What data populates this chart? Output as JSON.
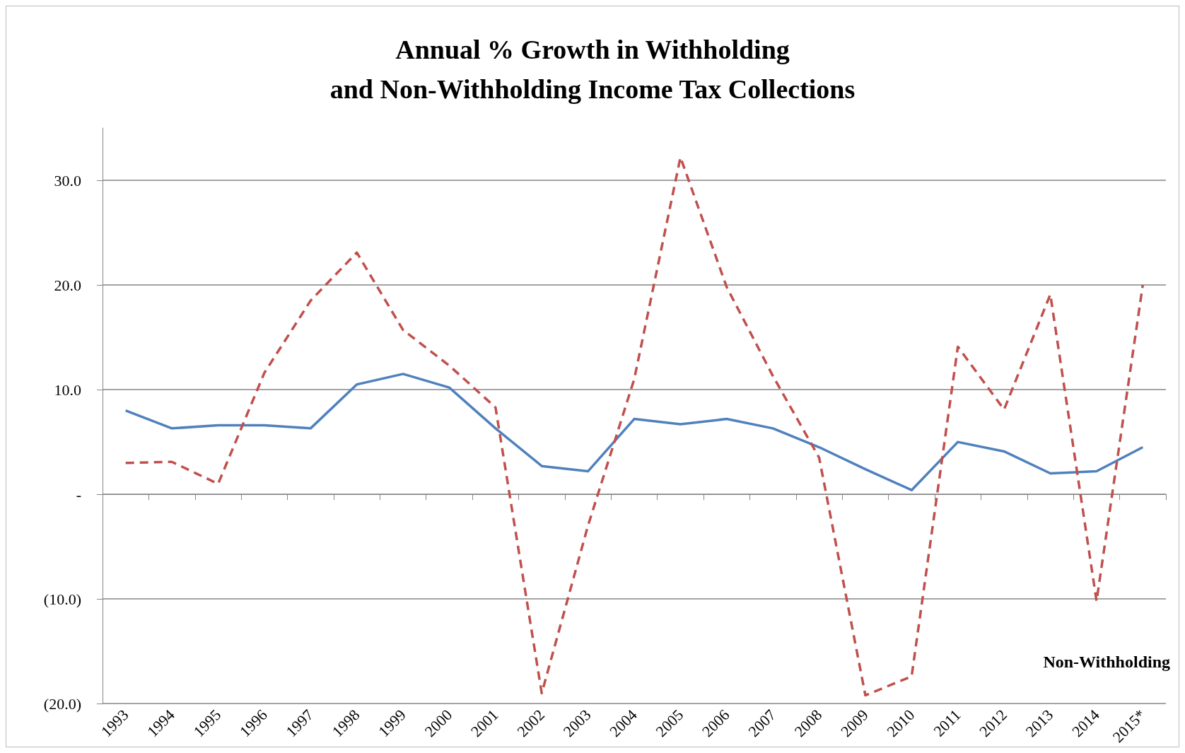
{
  "chart_data": {
    "type": "line",
    "title": "Annual % Growth in Withholding\nand Non-Withholding Income Tax Collections",
    "categories": [
      "1993",
      "1994",
      "1995",
      "1996",
      "1997",
      "1998",
      "1999",
      "2000",
      "2001",
      "2002",
      "2003",
      "2004",
      "2005",
      "2006",
      "2007",
      "2008",
      "2009",
      "2010",
      "2011",
      "2012",
      "2013",
      "2014",
      "2015*"
    ],
    "series": [
      {
        "color": "#4f81bd",
        "line_style": "solid",
        "values": [
          8.0,
          6.3,
          6.6,
          6.6,
          6.3,
          10.5,
          11.5,
          10.2,
          6.3,
          2.7,
          2.2,
          7.2,
          6.7,
          7.2,
          6.3,
          4.5,
          2.4,
          0.4,
          5.0,
          4.1,
          2.0,
          2.2,
          4.5
        ]
      },
      {
        "name": "Non-Withholding",
        "color": "#c0504d",
        "line_style": "dashed",
        "values": [
          3.0,
          3.1,
          1.0,
          11.6,
          18.5,
          23.1,
          15.7,
          12.3,
          8.3,
          -19.0,
          -3.0,
          11.0,
          32.2,
          19.8,
          11.3,
          3.5,
          -19.2,
          -17.4,
          14.1,
          8.1,
          19.1,
          -10.2,
          20.0
        ]
      }
    ],
    "ylim": [
      -20,
      35
    ],
    "yticks": [
      {
        "value": -20,
        "label": "(20.0)"
      },
      {
        "value": -10,
        "label": "(10.0)"
      },
      {
        "value": 0,
        "label": "-"
      },
      {
        "value": 10,
        "label": "10.0"
      },
      {
        "value": 20,
        "label": "20.0"
      },
      {
        "value": 30,
        "label": "30.0"
      }
    ],
    "grid": "y",
    "legend": false,
    "marker": "none"
  }
}
